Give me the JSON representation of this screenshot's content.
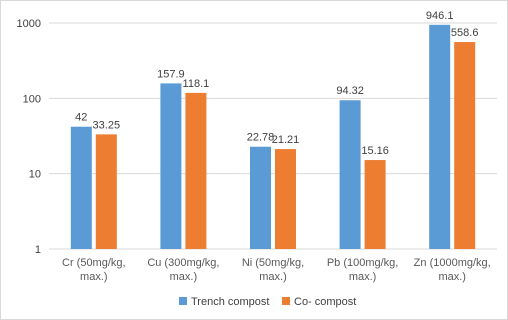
{
  "chart_data": {
    "type": "bar",
    "y_scale": "log",
    "ylim": [
      1,
      1000
    ],
    "y_ticks": [
      "1",
      "10",
      "100",
      "1000"
    ],
    "categories": [
      [
        "Cr (50mg/kg,",
        "max.)"
      ],
      [
        "Cu (300mg/kg,",
        "max.)"
      ],
      [
        "Ni (50mg/kg,",
        "max.)"
      ],
      [
        "Pb (100mg/kg,",
        "max.)"
      ],
      [
        "Zn (1000mg/kg,",
        "max.)"
      ]
    ],
    "series": [
      {
        "name": "Trench compost",
        "color": "#5b9bd5",
        "values": [
          42,
          157.9,
          22.78,
          94.32,
          946.1
        ],
        "labels": [
          "42",
          "157.9",
          "22.78",
          "94.32",
          "946.1"
        ]
      },
      {
        "name": "Co- compost",
        "color": "#ed7d31",
        "values": [
          33.25,
          118.1,
          21.21,
          15.16,
          558.6
        ],
        "labels": [
          "33.25",
          "118.1",
          "21.21",
          "15.16",
          "558.6"
        ]
      }
    ],
    "grid": "horizontal",
    "legend_position": "bottom"
  }
}
